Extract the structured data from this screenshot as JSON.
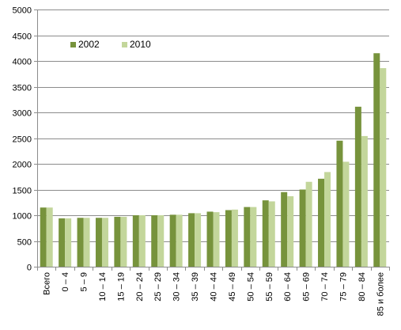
{
  "chart_data": {
    "type": "bar",
    "title": "",
    "xlabel": "",
    "ylabel": "",
    "ylim": [
      0,
      5000
    ],
    "yticks": [
      0,
      500,
      1000,
      1500,
      2000,
      2500,
      3000,
      3500,
      4000,
      4500,
      5000
    ],
    "grid": true,
    "legend_position": "top-left",
    "categories": [
      "Всего",
      "0 – 4",
      "5 – 9",
      "10 – 14",
      "15 – 19",
      "20 – 24",
      "25 – 29",
      "30 – 34",
      "35 – 39",
      "40 – 44",
      "45 – 49",
      "50 – 54",
      "55 – 59",
      "60 – 64",
      "65 – 69",
      "70 – 74",
      "75 – 79",
      "80 – 84",
      "85 и более"
    ],
    "series": [
      {
        "name": "2002",
        "color": "#77933c",
        "values": [
          1150,
          940,
          950,
          950,
          970,
          1000,
          1000,
          1010,
          1040,
          1070,
          1100,
          1160,
          1290,
          1450,
          1500,
          1710,
          2450,
          3110,
          4150
        ]
      },
      {
        "name": "2010",
        "color": "#c3d69b",
        "values": [
          1150,
          940,
          950,
          950,
          970,
          1000,
          1000,
          1010,
          1040,
          1060,
          1110,
          1160,
          1270,
          1370,
          1650,
          1840,
          2040,
          2540,
          3860
        ]
      }
    ]
  }
}
